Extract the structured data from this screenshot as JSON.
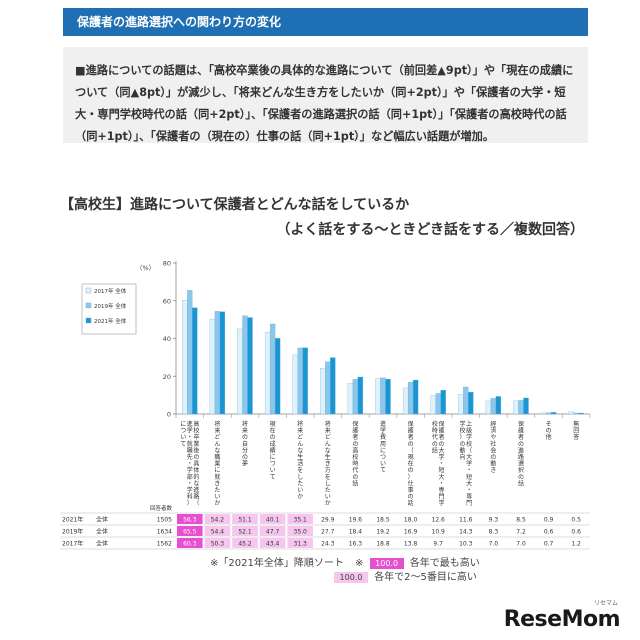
{
  "header": {
    "title": "保護者の進路選択への関わり方の変化"
  },
  "summary": {
    "lines": [
      "■進路についての話題は、「高校卒業後の具体的な進路について（前回差▲9pt）」や「現在の成績に",
      "ついて（同▲8pt）」が減少し、「将来どんな生き方をしたいか（同+2pt）」や「保護者の大学・短",
      "大・専門学校時代の話（同+2pt）」、「保護者の進路選択の話（同+1pt）」「保護者の高校時代の話",
      "（同+1pt）」、「保護者の（現在の）仕事の話（同+1pt）」など幅広い話題が増加。"
    ]
  },
  "chart": {
    "title": "【高校生】進路について保護者とどんな話をしているか",
    "subtitle": "（よく話をする～ときどき話をする／複数回答）",
    "unit": "（%）"
  },
  "chart_data": {
    "type": "bar",
    "ylim": [
      0,
      80
    ],
    "yticks": [
      0,
      20,
      40,
      60,
      80
    ],
    "grid": false,
    "legend_position": "top-left",
    "categories": [
      "高校卒業後の具体的な進路（進学・就職先・学部・学科）について",
      "将来どんな職業に就きたいか",
      "将来の自分の夢",
      "現在の成績について",
      "将来どんな生活をしたいか",
      "将来どんな生き方をしたいか",
      "保護者の高校時代の話",
      "進学費用について",
      "保護者の（現在の）仕事の話",
      "保護者の大学・短大・専門学校時代の話",
      "上級学校（大学・短大・専門学校）の動向",
      "経済や社会の動き",
      "保護者の進路選択の話",
      "その他",
      "無回答"
    ],
    "series": [
      {
        "name": "2017年 全体",
        "color": "#dff2fb",
        "values": [
          60.3,
          50.3,
          45.2,
          43.4,
          31.3,
          24.3,
          16.3,
          18.8,
          13.8,
          9.7,
          10.3,
          7.0,
          7.0,
          0.7,
          1.2
        ]
      },
      {
        "name": "2019年 全体",
        "color": "#8cc6ea",
        "values": [
          65.5,
          54.4,
          52.1,
          47.7,
          35.0,
          27.7,
          18.4,
          19.2,
          16.9,
          10.9,
          14.3,
          8.3,
          7.2,
          0.6,
          0.6
        ]
      },
      {
        "name": "2021年 全体",
        "color": "#1a96d4",
        "values": [
          56.3,
          54.2,
          51.1,
          40.1,
          35.1,
          29.9,
          19.6,
          18.5,
          18.0,
          12.6,
          11.6,
          9.3,
          8.5,
          0.9,
          0.5
        ]
      }
    ],
    "table": {
      "count_header": "回答者数",
      "rows": [
        {
          "year": "2021年",
          "group": "全体",
          "n": "1505",
          "values": [
            "56.3",
            "54.2",
            "51.1",
            "40.1",
            "35.1",
            "29.9",
            "19.6",
            "18.5",
            "18.0",
            "12.6",
            "11.6",
            "9.3",
            "8.5",
            "0.9",
            "0.5"
          ]
        },
        {
          "year": "2019年",
          "group": "全体",
          "n": "1634",
          "values": [
            "65.5",
            "54.4",
            "52.1",
            "47.7",
            "35.0",
            "27.7",
            "18.4",
            "19.2",
            "16.9",
            "10.9",
            "14.3",
            "8.3",
            "7.2",
            "0.6",
            "0.6"
          ]
        },
        {
          "year": "2017年",
          "group": "全体",
          "n": "1562",
          "values": [
            "60.3",
            "50.3",
            "45.2",
            "43.4",
            "31.3",
            "24.3",
            "16.3",
            "18.8",
            "13.8",
            "9.7",
            "10.3",
            "7.0",
            "7.0",
            "0.7",
            "1.2"
          ]
        }
      ],
      "highlight_top_color": "#e64fd0",
      "highlight_rank_color": "#f6c6ee"
    }
  },
  "footnote": {
    "sort_note": "※「2021年全体」降順ソート",
    "mark": "※",
    "swatch_text": "100.0",
    "top_note": "各年で最も高い",
    "rank_note": "各年で2～5番目に高い"
  },
  "brand": {
    "name": "ReseMom",
    "sub": "リセマム"
  }
}
